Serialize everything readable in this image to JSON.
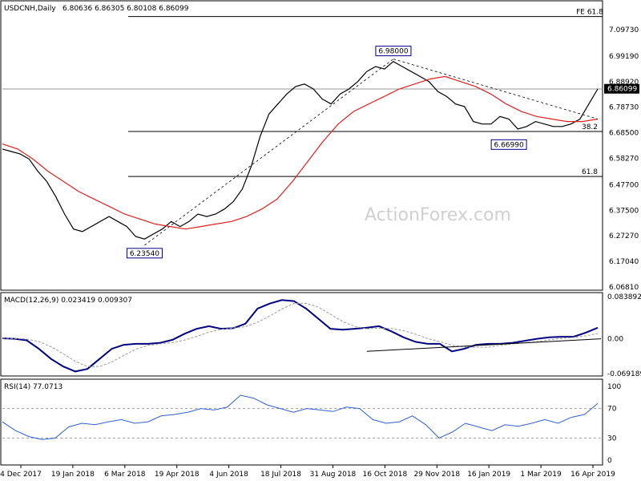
{
  "header": {
    "symbol": "USDCNH,Daily",
    "ohlc": "6.80636 6.86305 6.80108 6.86099"
  },
  "watermark": "ActionForex.com",
  "colors": {
    "ma": "#e02020",
    "macd": "#000080",
    "signal": "#999999",
    "rsi": "#3060d0",
    "fib": "#000000",
    "price_marker_bg": "#000000"
  },
  "chart_data": [
    {
      "type": "line",
      "panel": "price",
      "title": "USDCNH,Daily",
      "ylim": [
        6.0681,
        7.1583
      ],
      "yticks": [
        "7.09730",
        "6.99190",
        "6.88920",
        "6.78730",
        "6.68500",
        "6.58270",
        "6.47700",
        "6.37500",
        "6.27270",
        "6.17040",
        "6.06810"
      ],
      "last_price_label": "6.86099",
      "x_labels": [
        "4 Dec 2017",
        "19 Jan 2018",
        "6 Mar 2018",
        "19 Apr 2018",
        "4 Jun 2018",
        "18 Jul 2018",
        "31 Aug 2018",
        "16 Oct 2018",
        "29 Nov 2018",
        "16 Jan 2019",
        "1 Mar 2019",
        "16 Apr 2019"
      ],
      "series": [
        {
          "name": "price",
          "values": [
            6.62,
            6.61,
            6.6,
            6.58,
            6.53,
            6.49,
            6.43,
            6.36,
            6.3,
            6.29,
            6.31,
            6.33,
            6.35,
            6.33,
            6.31,
            6.27,
            6.26,
            6.28,
            6.3,
            6.33,
            6.31,
            6.33,
            6.36,
            6.35,
            6.36,
            6.38,
            6.41,
            6.46,
            6.55,
            6.67,
            6.76,
            6.8,
            6.84,
            6.87,
            6.88,
            6.86,
            6.82,
            6.8,
            6.84,
            6.86,
            6.89,
            6.93,
            6.95,
            6.94,
            6.97,
            6.95,
            6.93,
            6.91,
            6.89,
            6.85,
            6.83,
            6.8,
            6.79,
            6.73,
            6.72,
            6.72,
            6.75,
            6.74,
            6.7,
            6.71,
            6.73,
            6.72,
            6.71,
            6.71,
            6.72,
            6.74,
            6.8,
            6.86
          ]
        },
        {
          "name": "ma",
          "values": [
            6.64,
            6.62,
            6.58,
            6.53,
            6.49,
            6.45,
            6.42,
            6.39,
            6.36,
            6.34,
            6.32,
            6.31,
            6.3,
            6.31,
            6.32,
            6.33,
            6.35,
            6.38,
            6.42,
            6.49,
            6.57,
            6.65,
            6.72,
            6.77,
            6.8,
            6.83,
            6.86,
            6.88,
            6.9,
            6.91,
            6.89,
            6.87,
            6.84,
            6.8,
            6.77,
            6.75,
            6.74,
            6.73,
            6.73,
            6.74
          ]
        }
      ],
      "annotations": [
        {
          "text": "6.98000",
          "x_index": 44,
          "price": 6.98
        },
        {
          "text": "6.23540",
          "x_index": 16,
          "price": 6.2354
        },
        {
          "text": "6.66990",
          "x_index": 57,
          "price": 6.6699
        }
      ],
      "fib_levels": [
        {
          "label": "FE 61.8",
          "price": 7.15
        },
        {
          "label": "",
          "price": 6.86
        },
        {
          "label": "38.2",
          "price": 6.69
        },
        {
          "label": "61.8",
          "price": 6.51
        }
      ]
    },
    {
      "type": "line",
      "panel": "macd",
      "title": "MACD(12,26,9) 0.023419 0.009307",
      "ylim": [
        -0.0692,
        0.0839
      ],
      "yticks": [
        "0.083892",
        "0.00",
        "-0.069189"
      ],
      "series": [
        {
          "name": "MACD(12,26,9)",
          "values": [
            0.001,
            0.0,
            -0.003,
            -0.02,
            -0.04,
            -0.055,
            -0.065,
            -0.06,
            -0.04,
            -0.02,
            -0.012,
            -0.01,
            -0.01,
            -0.008,
            -0.002,
            0.01,
            0.02,
            0.025,
            0.02,
            0.021,
            0.03,
            0.06,
            0.07,
            0.077,
            0.075,
            0.06,
            0.04,
            0.02,
            0.018,
            0.02,
            0.022,
            0.025,
            0.015,
            0.003,
            -0.006,
            -0.01,
            -0.01,
            -0.025,
            -0.02,
            -0.012,
            -0.01,
            -0.01,
            -0.008,
            -0.004,
            0.0,
            0.003,
            0.004,
            0.004,
            0.012,
            0.022
          ]
        }
      ]
    },
    {
      "type": "line",
      "panel": "rsi",
      "title": "RSI(14) 77.0713",
      "ylim": [
        0,
        100
      ],
      "yticks": [
        "100",
        "70",
        "30",
        "0"
      ],
      "series": [
        {
          "name": "RSI(14)",
          "values": [
            52,
            40,
            32,
            28,
            30,
            45,
            50,
            48,
            52,
            55,
            50,
            52,
            60,
            62,
            65,
            70,
            68,
            72,
            88,
            84,
            75,
            70,
            65,
            70,
            68,
            66,
            72,
            70,
            55,
            50,
            52,
            60,
            48,
            30,
            38,
            50,
            45,
            40,
            48,
            46,
            50,
            55,
            50,
            58,
            62,
            77
          ]
        }
      ]
    }
  ]
}
